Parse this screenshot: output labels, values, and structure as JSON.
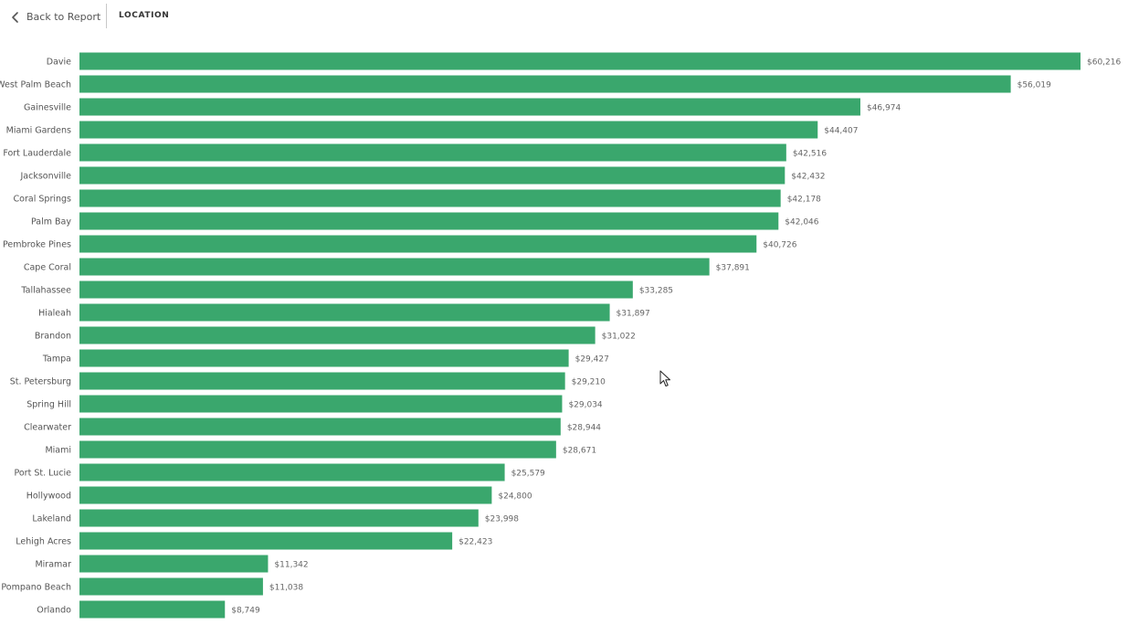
{
  "header": {
    "back_label": "Back to Report",
    "title": "LOCATION",
    "back_icon": "chevron-left-icon"
  },
  "colors": {
    "bar": "#3aa76d",
    "background": "#ffffff",
    "label_text": "#555555"
  },
  "chart_data": {
    "type": "bar",
    "orientation": "horizontal",
    "title": "",
    "xlabel": "",
    "ylabel": "",
    "xlim": [
      0,
      60216
    ],
    "grid": false,
    "legend": "none",
    "categories": [
      "Davie",
      "West Palm Beach",
      "Gainesville",
      "Miami Gardens",
      "Fort Lauderdale",
      "Jacksonville",
      "Coral Springs",
      "Palm Bay",
      "Pembroke Pines",
      "Cape Coral",
      "Tallahassee",
      "Hialeah",
      "Brandon",
      "Tampa",
      "St. Petersburg",
      "Spring Hill",
      "Clearwater",
      "Miami",
      "Port St. Lucie",
      "Hollywood",
      "Lakeland",
      "Lehigh Acres",
      "Miramar",
      "Pompano Beach",
      "Orlando"
    ],
    "values": [
      60216,
      56019,
      46974,
      44407,
      42516,
      42432,
      42178,
      42046,
      40726,
      37891,
      33285,
      31897,
      31022,
      29427,
      29210,
      29034,
      28944,
      28671,
      25579,
      24800,
      23998,
      22423,
      11342,
      11038,
      8749
    ],
    "data_labels": [
      "$60,216",
      "$56,019",
      "$46,974",
      "$44,407",
      "$42,516",
      "$42,432",
      "$42,178",
      "$42,046",
      "$40,726",
      "$37,891",
      "$33,285",
      "$31,897",
      "$31,022",
      "$29,427",
      "$29,210",
      "$29,034",
      "$28,944",
      "$28,671",
      "$25,579",
      "$24,800",
      "$23,998",
      "$22,423",
      "$11,342",
      "$11,038",
      "$8,749"
    ]
  }
}
